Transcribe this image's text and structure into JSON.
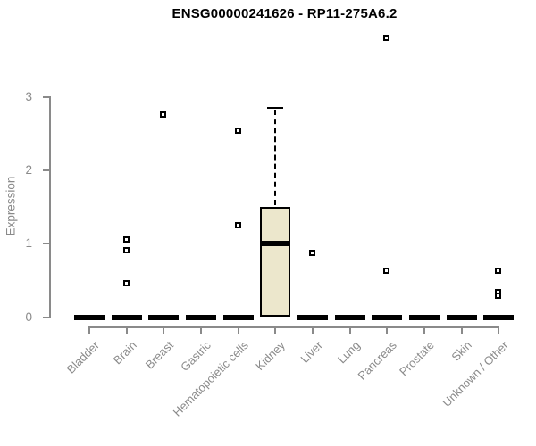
{
  "chart_data": {
    "type": "box",
    "title": "ENSG00000241626 - RP11-275A6.2",
    "xlabel": "",
    "ylabel": "Expression",
    "ylim": [
      0,
      3
    ],
    "yticks": [
      0,
      1,
      2,
      3
    ],
    "grid": false,
    "legend": "none",
    "categories": [
      "Bladder",
      "Brain",
      "Breast",
      "Gastric",
      "Hematopoietic cells",
      "Kidney",
      "Liver",
      "Lung",
      "Pancreas",
      "Prostate",
      "Skin",
      "Unknown / Other"
    ],
    "series": [
      {
        "name": "Bladder",
        "low": 0,
        "q1": 0,
        "median": 0,
        "q3": 0,
        "high": 0,
        "outliers": []
      },
      {
        "name": "Brain",
        "low": 0,
        "q1": 0,
        "median": 0,
        "q3": 0,
        "high": 0,
        "outliers": [
          1.05,
          0.9,
          0.46
        ]
      },
      {
        "name": "Breast",
        "low": 0,
        "q1": 0,
        "median": 0,
        "q3": 0,
        "high": 0,
        "outliers": [
          2.75
        ]
      },
      {
        "name": "Gastric",
        "low": 0,
        "q1": 0,
        "median": 0,
        "q3": 0,
        "high": 0,
        "outliers": []
      },
      {
        "name": "Hematopoietic cells",
        "low": 0,
        "q1": 0,
        "median": 0,
        "q3": 0,
        "high": 0,
        "outliers": [
          2.53,
          1.24
        ]
      },
      {
        "name": "Kidney",
        "low": 0,
        "q1": 0,
        "median": 1.0,
        "q3": 1.5,
        "high": 2.85,
        "outliers": []
      },
      {
        "name": "Liver",
        "low": 0,
        "q1": 0,
        "median": 0,
        "q3": 0,
        "high": 0,
        "outliers": [
          0.87
        ]
      },
      {
        "name": "Lung",
        "low": 0,
        "q1": 0,
        "median": 0,
        "q3": 0,
        "high": 0,
        "outliers": []
      },
      {
        "name": "Pancreas",
        "low": 0,
        "q1": 0,
        "median": 0,
        "q3": 0,
        "high": 0,
        "outliers": [
          3.8,
          0.63
        ]
      },
      {
        "name": "Prostate",
        "low": 0,
        "q1": 0,
        "median": 0,
        "q3": 0,
        "high": 0,
        "outliers": []
      },
      {
        "name": "Skin",
        "low": 0,
        "q1": 0,
        "median": 0,
        "q3": 0,
        "high": 0,
        "outliers": []
      },
      {
        "name": "Unknown / Other",
        "low": 0,
        "q1": 0,
        "median": 0,
        "q3": 0,
        "high": 0,
        "outliers": [
          0.63,
          0.34,
          0.29
        ]
      }
    ],
    "colors": {
      "box_fill": "#ece7cc",
      "box_border": "#000000",
      "median": "#000000",
      "whisker": "#000000",
      "outlier_border": "#000000",
      "outlier_fill": "#ffffff",
      "axis": "#8a8a8a",
      "tick_label": "#8a8a8a",
      "title": "#000000"
    }
  }
}
